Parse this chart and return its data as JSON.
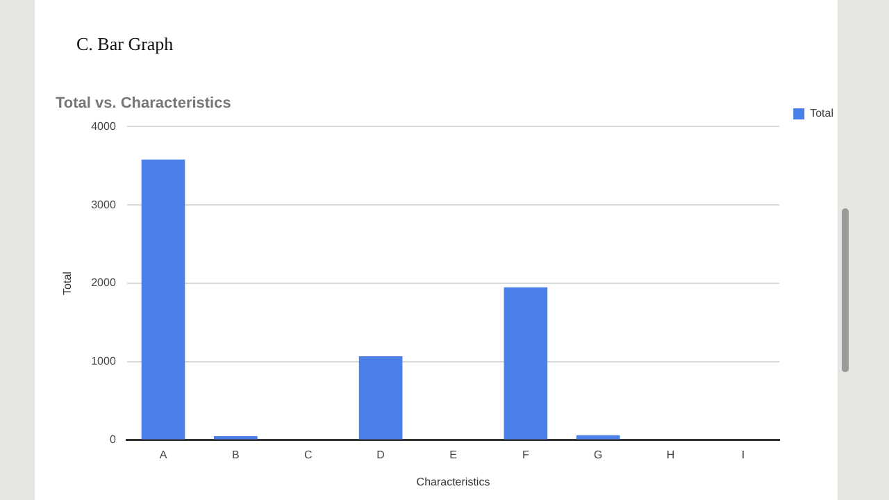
{
  "chart_data": {
    "type": "bar",
    "title": "Total vs. Characteristics",
    "xlabel": "Characteristics",
    "ylabel": "Total",
    "annotations": [
      "C. Bar Graph"
    ],
    "categories": [
      "A",
      "B",
      "C",
      "D",
      "E",
      "F",
      "G",
      "H",
      "I"
    ],
    "series": [
      {
        "name": "Total",
        "color": "#4a80e8",
        "values": [
          3580,
          50,
          0,
          1070,
          0,
          1950,
          60,
          0,
          0
        ]
      }
    ],
    "ylim": [
      0,
      4000
    ],
    "yticks": [
      0,
      1000,
      2000,
      3000,
      4000
    ],
    "grid": "y",
    "legend": "top right"
  }
}
